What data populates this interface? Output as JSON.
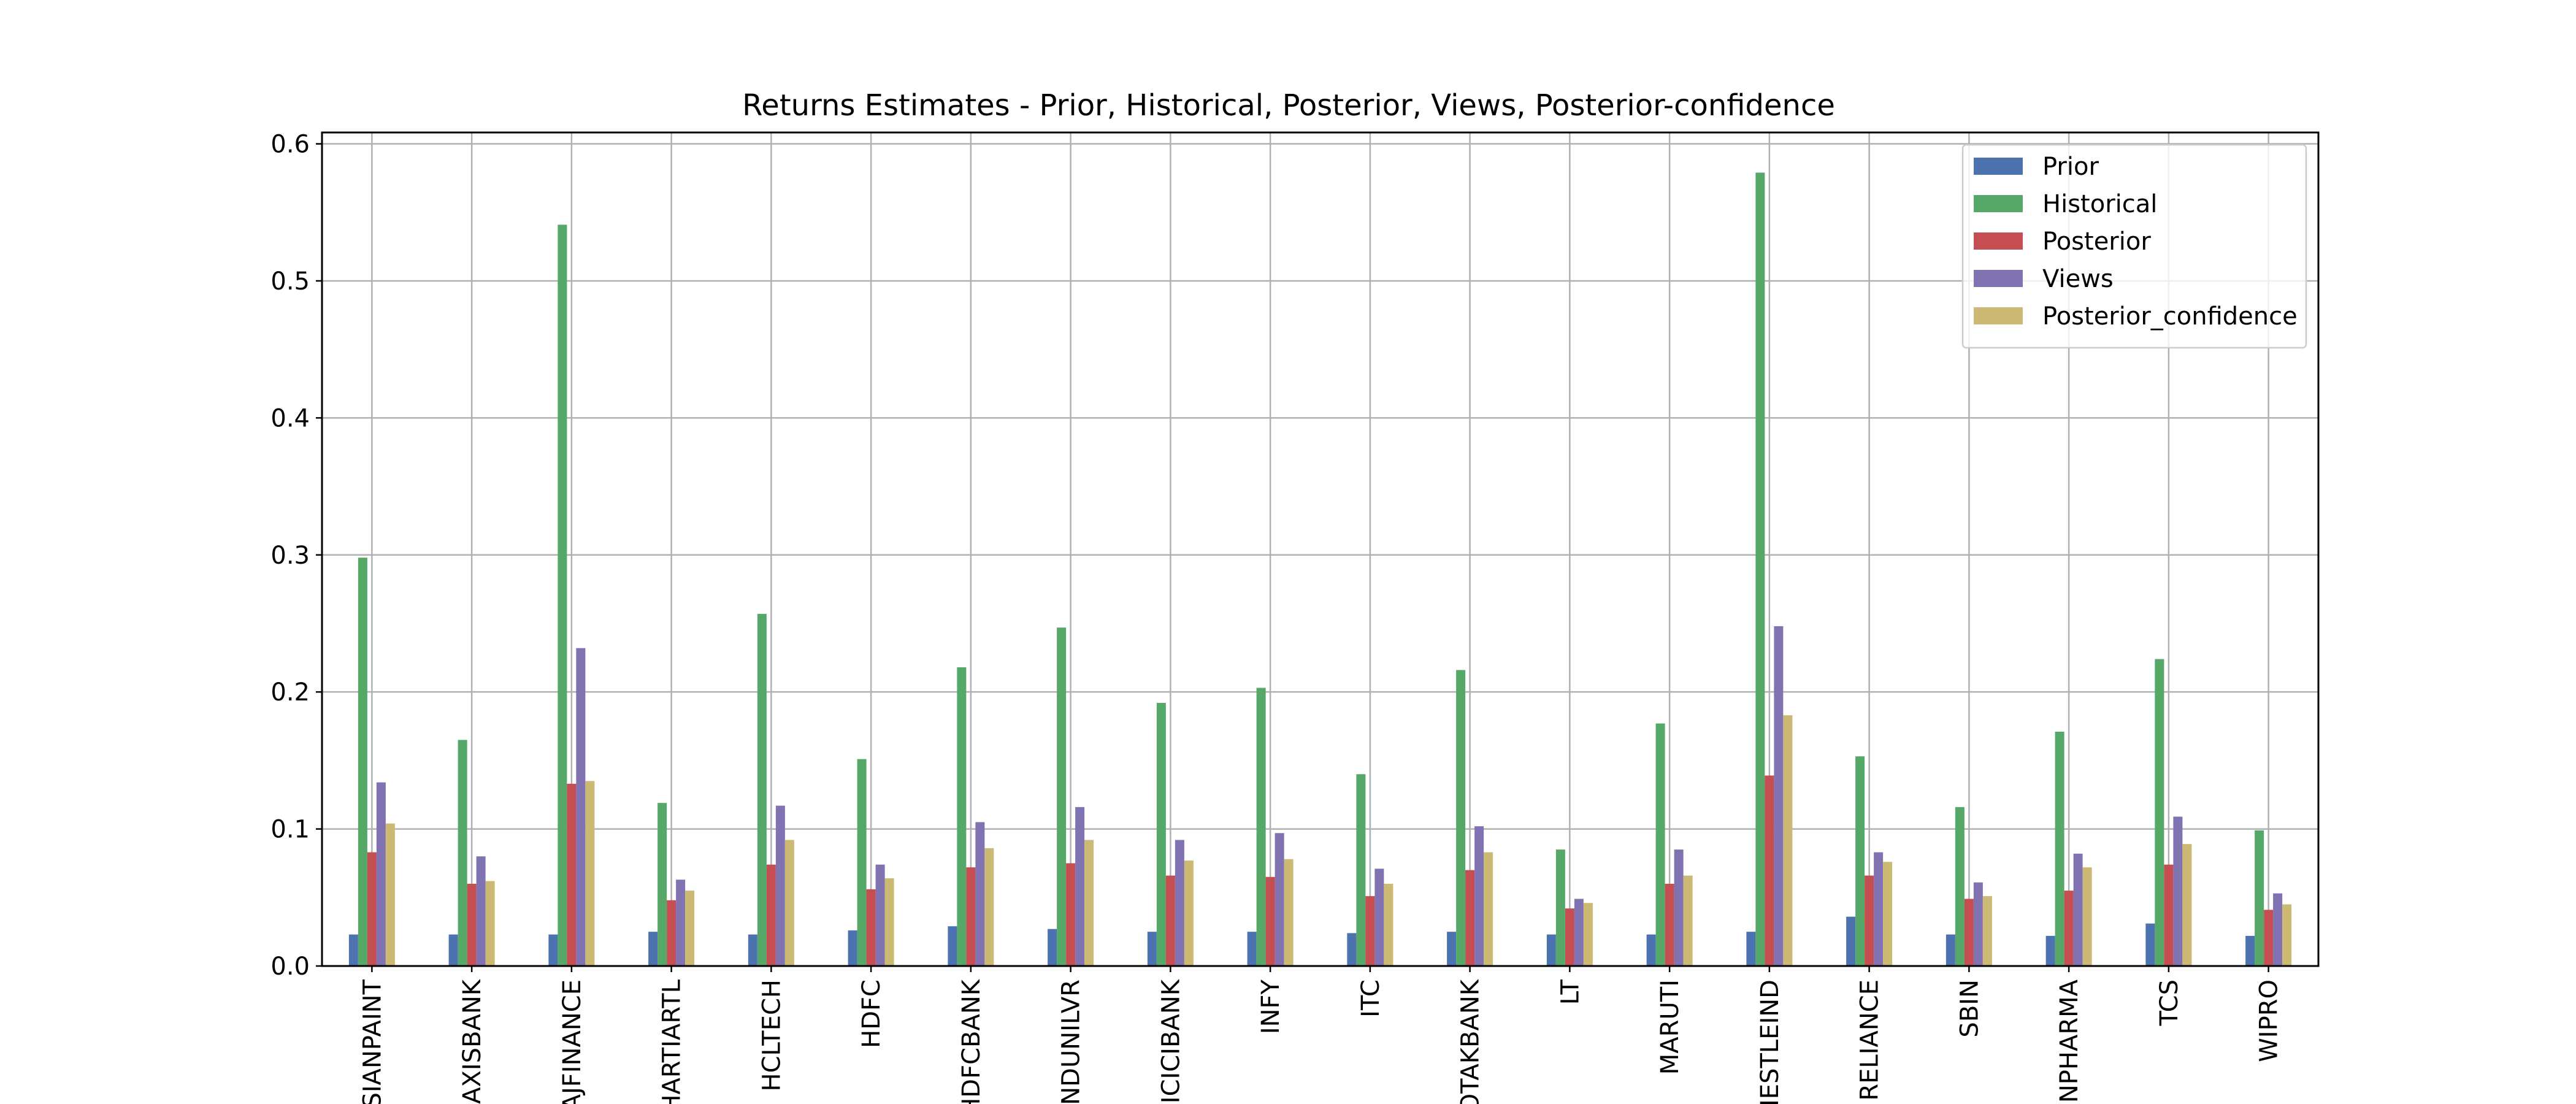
{
  "chart_data": {
    "type": "bar",
    "title": "Returns Estimates - Prior, Historical, Posterior, Views, Posterior-confidence",
    "xlabel": "",
    "ylabel": "",
    "ylim": [
      0,
      0.6083
    ],
    "yticks": [
      "0.0",
      "0.1",
      "0.2",
      "0.3",
      "0.4",
      "0.5",
      "0.6"
    ],
    "grid": true,
    "legend_position": "top-right",
    "categories": [
      "ASIANPAINT",
      "AXISBANK",
      "BAJFINANCE",
      "BHARTIARTL",
      "HCLTECH",
      "HDFC",
      "HDFCBANK",
      "HINDUNILVR",
      "ICICIBANK",
      "INFY",
      "ITC",
      "KOTAKBANK",
      "LT",
      "MARUTI",
      "NESTLEIND",
      "RELIANCE",
      "SBIN",
      "SUNPHARMA",
      "TCS",
      "WIPRO"
    ],
    "series": [
      {
        "name": "Prior",
        "color": "#4c72b0",
        "values": [
          0.023,
          0.023,
          0.023,
          0.025,
          0.023,
          0.026,
          0.029,
          0.027,
          0.025,
          0.025,
          0.024,
          0.025,
          0.023,
          0.023,
          0.025,
          0.036,
          0.023,
          0.022,
          0.031,
          0.022
        ]
      },
      {
        "name": "Historical",
        "color": "#55a868",
        "values": [
          0.298,
          0.165,
          0.541,
          0.119,
          0.257,
          0.151,
          0.218,
          0.247,
          0.192,
          0.203,
          0.14,
          0.216,
          0.085,
          0.177,
          0.579,
          0.153,
          0.116,
          0.171,
          0.224,
          0.099
        ]
      },
      {
        "name": "Posterior",
        "color": "#c44e52",
        "values": [
          0.083,
          0.06,
          0.133,
          0.048,
          0.074,
          0.056,
          0.072,
          0.075,
          0.066,
          0.065,
          0.051,
          0.07,
          0.042,
          0.06,
          0.139,
          0.066,
          0.049,
          0.055,
          0.074,
          0.041
        ]
      },
      {
        "name": "Views",
        "color": "#8172b2",
        "values": [
          0.134,
          0.08,
          0.232,
          0.063,
          0.117,
          0.074,
          0.105,
          0.116,
          0.092,
          0.097,
          0.071,
          0.102,
          0.049,
          0.085,
          0.248,
          0.083,
          0.061,
          0.082,
          0.109,
          0.053
        ]
      },
      {
        "name": "Posterior_confidence",
        "color": "#ccb974",
        "values": [
          0.104,
          0.062,
          0.135,
          0.055,
          0.092,
          0.064,
          0.086,
          0.092,
          0.077,
          0.078,
          0.06,
          0.083,
          0.046,
          0.066,
          0.183,
          0.076,
          0.051,
          0.072,
          0.089,
          0.045
        ]
      }
    ]
  }
}
